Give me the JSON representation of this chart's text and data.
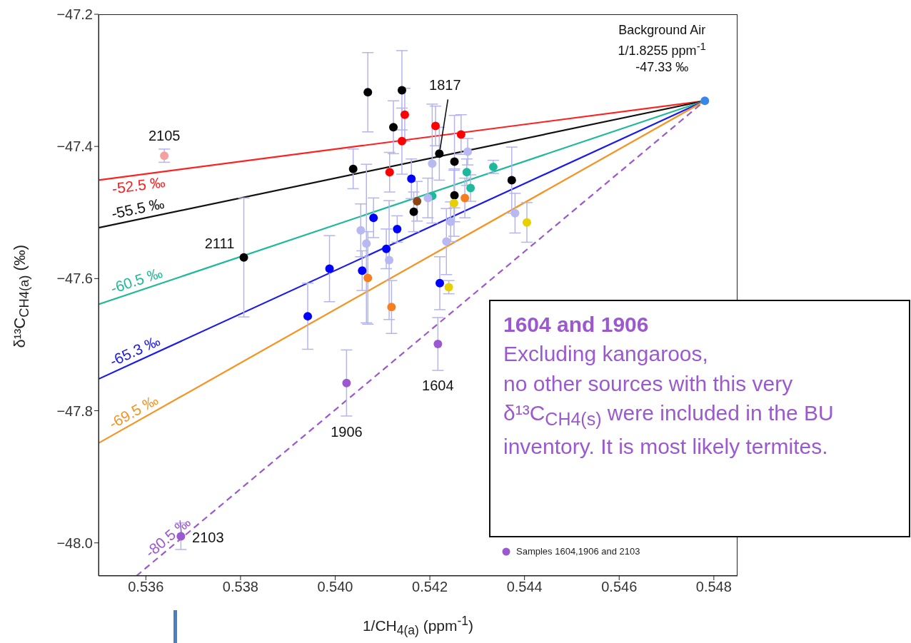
{
  "chart_data": {
    "type": "scatter",
    "xlabel": "1/CH$_{4(a)}$ (ppm$^{-1}$)",
    "ylabel": "δ¹³C$_{CH4(a)}$ (‰)",
    "xlim": [
      0.535,
      0.5485
    ],
    "ylim": [
      -48.05,
      -47.2
    ],
    "xticks": [
      {
        "value": 0.536,
        "label": "0.536"
      },
      {
        "value": 0.538,
        "label": "0.538"
      },
      {
        "value": 0.54,
        "label": "0.540"
      },
      {
        "value": 0.542,
        "label": "0.542"
      },
      {
        "value": 0.544,
        "label": "0.544"
      },
      {
        "value": 0.546,
        "label": "0.546"
      },
      {
        "value": 0.548,
        "label": "0.548"
      }
    ],
    "yticks": [
      {
        "value": -47.2,
        "label": "−47.2"
      },
      {
        "value": -47.4,
        "label": "−47.4"
      },
      {
        "value": -47.6,
        "label": "−47.6"
      },
      {
        "value": -47.8,
        "label": "−47.8"
      },
      {
        "value": -48.0,
        "label": "−48.0"
      }
    ],
    "marker": "circle",
    "line_style": "solid",
    "legend": "bottom right",
    "series": [
      {
        "type": "line",
        "marker": "none",
        "name": "-52.5 ‰",
        "color": "#ff2020",
        "x": [
          0.535,
          0.54781
        ],
        "values": [
          -47.451,
          -47.331
        ]
      },
      {
        "type": "line",
        "marker": "none",
        "name": "-55.5 ‰",
        "color": "#111111",
        "x": [
          0.535,
          0.54781
        ],
        "values": [
          -47.523,
          -47.331
        ]
      },
      {
        "type": "line",
        "marker": "none",
        "name": "-60.5 ‰",
        "color": "#22b89a",
        "x": [
          0.535,
          0.54781
        ],
        "values": [
          -47.639,
          -47.331
        ]
      },
      {
        "type": "line",
        "marker": "none",
        "name": "-65.3 ‰",
        "color": "#1a1aee",
        "x": [
          0.535,
          0.54781
        ],
        "values": [
          -47.752,
          -47.331
        ]
      },
      {
        "type": "line",
        "marker": "none",
        "name": "-69.5 ‰",
        "color": "#f7921e",
        "x": [
          0.535,
          0.54781
        ],
        "values": [
          -47.849,
          -47.331
        ]
      },
      {
        "type": "line",
        "marker": "none",
        "name": "-80.5 ‰",
        "color": "#9b59d0",
        "line_style": "dashed",
        "x": [
          0.5358,
          0.54781
        ],
        "values": [
          -48.05,
          -47.331
        ]
      },
      {
        "color": "#000000",
        "x": [
          0.54069,
          0.54141,
          0.54123,
          0.5422,
          0.54038,
          0.54252,
          0.54373,
          0.54252,
          0.54166,
          0.53807
        ],
        "values": [
          -47.318,
          -47.315,
          -47.371,
          -47.411,
          -47.434,
          -47.423,
          -47.451,
          -47.474,
          -47.499,
          -47.568
        ],
        "errors": [
          0.06,
          0.06,
          0.04,
          0.04,
          0.03,
          0.07,
          0.05,
          0.04,
          0.03,
          0.09
        ]
      },
      {
        "color": "#ff0000",
        "x": [
          0.54147,
          0.54212,
          0.54141,
          0.54266,
          0.54115
        ],
        "values": [
          -47.352,
          -47.369,
          -47.392,
          -47.382,
          -47.439
        ],
        "errors": [
          0.04,
          0.03,
          0.05,
          0.03,
          0.03
        ]
      },
      {
        "color": "#1fb89c",
        "x": [
          0.54278,
          0.54334,
          0.54286,
          0.54205
        ],
        "values": [
          -47.439,
          -47.431,
          -47.463,
          -47.475
        ],
        "errors": [
          0.02,
          0.01,
          0.02,
          null
        ]
      },
      {
        "color": "#0000ff",
        "x": [
          0.54161,
          0.54081,
          0.54131,
          0.54108,
          0.53988,
          0.54057,
          0.54221,
          0.53942
        ],
        "values": [
          -47.449,
          -47.508,
          -47.525,
          -47.555,
          -47.585,
          -47.588,
          -47.607,
          -47.657
        ],
        "errors": [
          0.03,
          0.03,
          0.02,
          0.03,
          0.05,
          0.03,
          0.04,
          0.05
        ]
      },
      {
        "color": "#f57f20",
        "x": [
          0.54274,
          0.54069,
          0.54119
        ],
        "values": [
          -47.478,
          -47.599,
          -47.643
        ],
        "errors": [
          0.03,
          0.07,
          0.04
        ]
      },
      {
        "color": "#b8b8f2",
        "x": [
          0.5428,
          0.54205,
          0.54196,
          0.5438,
          0.54244,
          0.54054,
          0.54066,
          0.54235,
          0.54114
        ],
        "values": [
          -47.408,
          -47.426,
          -47.478,
          -47.501,
          -47.514,
          -47.527,
          -47.547,
          -47.544,
          -47.572
        ],
        "errors": [
          0.02,
          0.09,
          0.03,
          0.03,
          0.03,
          0.04,
          0.12,
          0.05,
          0.09
        ]
      },
      {
        "color": "#8b4513",
        "x": [
          0.54173
        ],
        "values": [
          -47.483
        ],
        "errors": [
          0.03
        ]
      },
      {
        "color": "#e6d000",
        "x": [
          0.54251,
          0.54405,
          0.5424
        ],
        "values": [
          -47.486,
          -47.515,
          -47.613
        ],
        "errors": [
          0.05,
          0.03,
          0.01
        ]
      },
      {
        "color": "#f4a0a0",
        "x": [
          0.53639
        ],
        "values": [
          -47.414
        ],
        "errors": [
          0.01
        ]
      },
      {
        "name": "Samples 1604,1906 and 2103",
        "color": "#9b59d0",
        "x": [
          0.54217,
          0.54024,
          0.53674
        ],
        "values": [
          -47.699,
          -47.758,
          -47.99
        ],
        "errors": [
          0.04,
          0.05,
          0.02
        ]
      },
      {
        "color": "#3a86e8",
        "x": [
          0.54781
        ],
        "values": [
          -47.331
        ]
      }
    ],
    "annotations": [
      {
        "text": "Background Air\n1/1.8255 ppm$^{-1}$\n-47.33 ‰",
        "x": 0.54781,
        "y": -47.331
      },
      {
        "text": "2105",
        "x": 0.53639,
        "y": -47.414
      },
      {
        "text": "2111",
        "x": 0.53807,
        "y": -47.568
      },
      {
        "text": "1817",
        "x": 0.5422,
        "y": -47.411
      },
      {
        "text": "1906",
        "x": 0.54024,
        "y": -47.758
      },
      {
        "text": "1604",
        "x": 0.54217,
        "y": -47.699
      },
      {
        "text": "2103",
        "x": 0.53674,
        "y": -47.99
      },
      "1604 and 1906",
      "Excluding kangaroos,\nno other sources with this very δ¹³C$_{CH4(s)}$ were included in the BU inventory. It is most likely termites."
    ]
  }
}
